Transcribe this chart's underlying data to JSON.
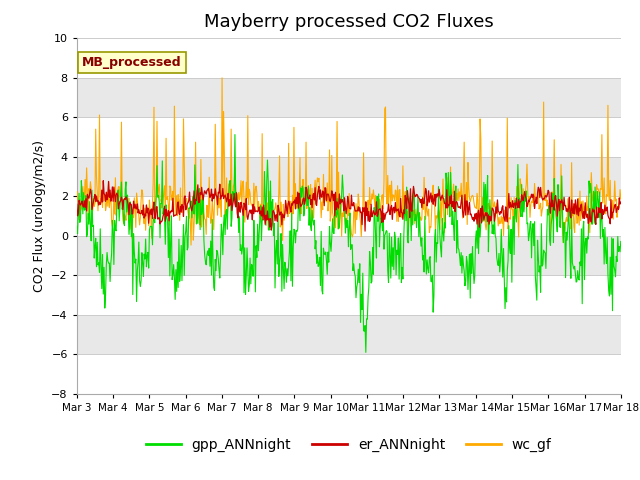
{
  "title": "Mayberry processed CO2 Fluxes",
  "ylabel": "CO2 Flux (urology/m2/s)",
  "ylim": [
    -8,
    10
  ],
  "yticks": [
    -8,
    -6,
    -4,
    -2,
    0,
    2,
    4,
    6,
    8,
    10
  ],
  "n_days": 15,
  "n_per_day": 48,
  "colors": {
    "gpp": "#00dd00",
    "er": "#cc0000",
    "wc": "#ffaa00"
  },
  "legend_labels": [
    "gpp_ANNnight",
    "er_ANNnight",
    "wc_gf"
  ],
  "label_box": "MB_processed",
  "label_box_color": "#ffffcc",
  "label_box_text_color": "#880000",
  "bg_color": "#ffffff",
  "band_colors": [
    "#ffffff",
    "#e8e8e8"
  ],
  "xtick_labels": [
    "Mar 3",
    "Mar 4",
    "Mar 5",
    "Mar 6",
    "Mar 7",
    "Mar 8",
    "Mar 9",
    "Mar 10",
    "Mar 11",
    "Mar 12",
    "Mar 13",
    "Mar 14",
    "Mar 15",
    "Mar 16",
    "Mar 17",
    "Mar 18"
  ],
  "title_fontsize": 13,
  "label_fontsize": 9,
  "tick_fontsize": 8,
  "legend_fontsize": 10
}
